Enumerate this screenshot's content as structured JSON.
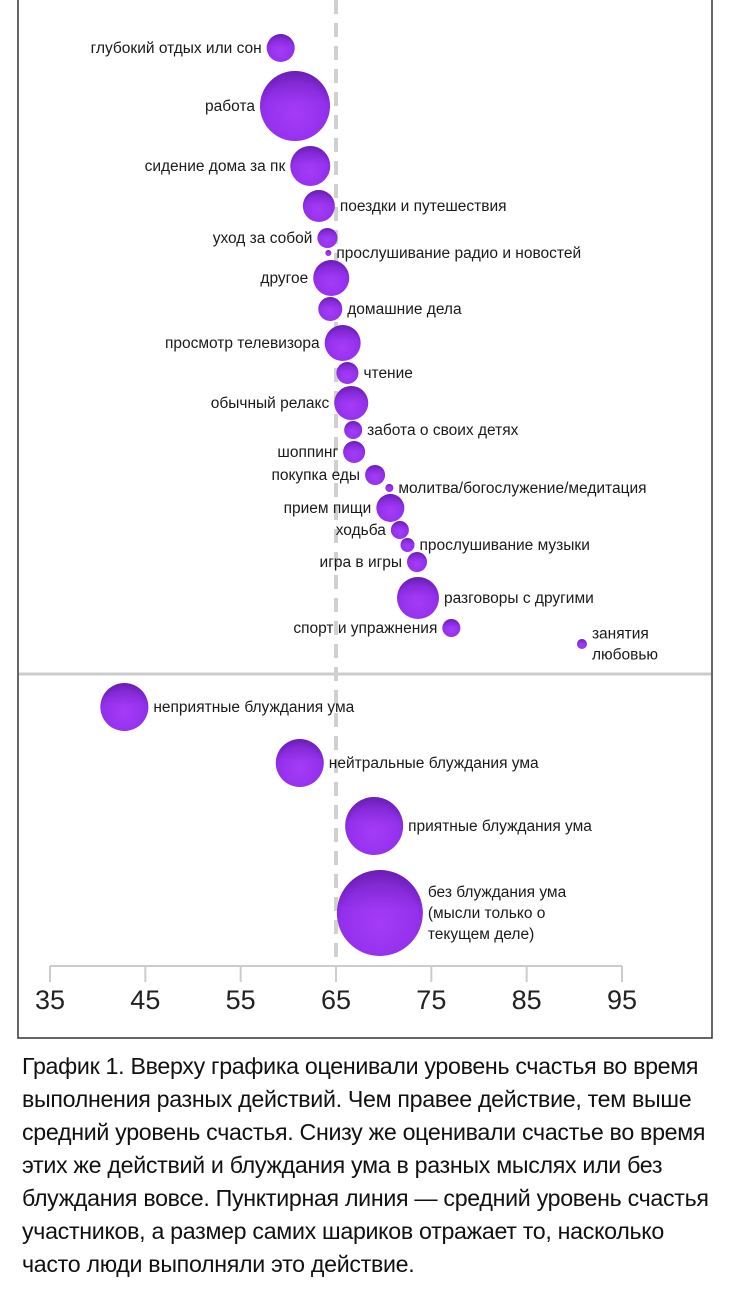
{
  "chart_data": {
    "type": "scatter",
    "subtype": "bubble",
    "xlim": [
      35,
      95
    ],
    "x_ticks": [
      "35",
      "45",
      "55",
      "65",
      "75",
      "85",
      "95"
    ],
    "reference_line": {
      "value": 65,
      "style": "dashed"
    },
    "bubble_color": "#9333ea",
    "panels": [
      {
        "points": [
          {
            "label": "глубокий отдых или сон",
            "x": 59.2,
            "size": 14,
            "label_side": "left"
          },
          {
            "label": "работа",
            "x": 60.7,
            "size": 35,
            "label_side": "left"
          },
          {
            "label": "сидение дома за пк",
            "x": 62.3,
            "size": 20,
            "label_side": "left"
          },
          {
            "label": "поездки и путешествия",
            "x": 63.2,
            "size": 16,
            "label_side": "right"
          },
          {
            "label": "уход за собой",
            "x": 64.1,
            "size": 10,
            "label_side": "left"
          },
          {
            "label": "прослушивание радио и новостей",
            "x": 64.2,
            "size": 3,
            "label_side": "right"
          },
          {
            "label": "другое",
            "x": 64.5,
            "size": 18,
            "label_side": "left"
          },
          {
            "label": "домашние дела",
            "x": 64.4,
            "size": 12,
            "label_side": "right"
          },
          {
            "label": "просмотр телевизора",
            "x": 65.7,
            "size": 18,
            "label_side": "left"
          },
          {
            "label": "чтение",
            "x": 66.2,
            "size": 11,
            "label_side": "right"
          },
          {
            "label": "обычный релакс",
            "x": 66.6,
            "size": 17,
            "label_side": "left"
          },
          {
            "label": "забота о своих детях",
            "x": 66.8,
            "size": 9,
            "label_side": "right"
          },
          {
            "label": "шоппинг",
            "x": 66.9,
            "size": 11,
            "label_side": "left"
          },
          {
            "label": "покупка еды",
            "x": 69.1,
            "size": 10,
            "label_side": "left"
          },
          {
            "label": "молитва/богослужение/медитация",
            "x": 70.6,
            "size": 4,
            "label_side": "right"
          },
          {
            "label": "прием пищи",
            "x": 70.7,
            "size": 14,
            "label_side": "left"
          },
          {
            "label": "ходьба",
            "x": 71.7,
            "size": 9,
            "label_side": "left"
          },
          {
            "label": "прослушивание музыки",
            "x": 72.5,
            "size": 7,
            "label_side": "right"
          },
          {
            "label": "игра в игры",
            "x": 73.5,
            "size": 10,
            "label_side": "left"
          },
          {
            "label": "разговоры с другими",
            "x": 73.6,
            "size": 21,
            "label_side": "right"
          },
          {
            "label": "спорт и упражнения",
            "x": 77.1,
            "size": 9,
            "label_side": "left"
          },
          {
            "label": "занятия\nлюбовью",
            "x": 90.8,
            "size": 5,
            "label_side": "right"
          }
        ]
      },
      {
        "points": [
          {
            "label": "неприятные блуждания ума",
            "x": 42.8,
            "size": 24,
            "label_side": "right"
          },
          {
            "label": "нейтральные блуждания ума",
            "x": 61.2,
            "size": 24,
            "label_side": "right"
          },
          {
            "label": "приятные блуждания ума",
            "x": 69.0,
            "size": 29,
            "label_side": "right"
          },
          {
            "label": "без блуждания ума\n(мысли только о\nтекущем деле)",
            "x": 69.6,
            "size": 43,
            "label_side": "right"
          }
        ]
      }
    ]
  },
  "caption": {
    "label": "График 1.",
    "text": " Вверху графика оценивали уровень счастья во время выполнения разных действий. Чем правее действие, тем выше средний уровень счастья. Снизу же оценивали счастье во время этих же действий и блуждания ума в разных мыслях или без блуждания вовсе. Пунктирная линия — средний уровень счастья участников, а размер самих шариков отражает то, насколько часто люди выполняли это действие."
  }
}
